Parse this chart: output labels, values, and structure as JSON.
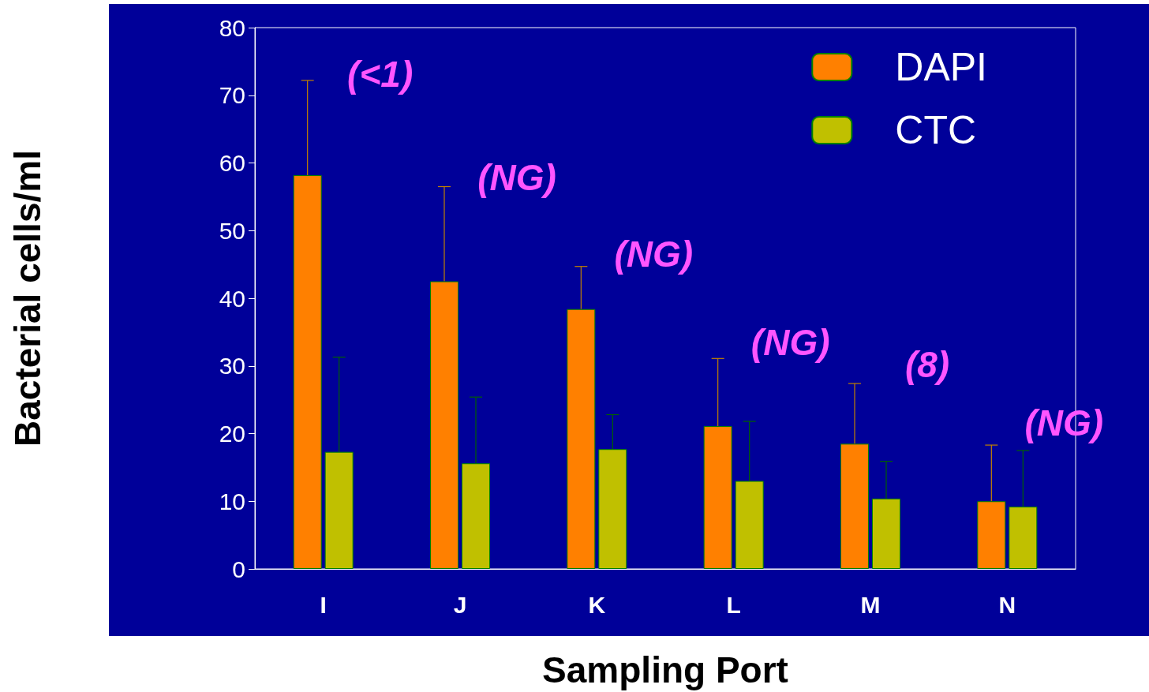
{
  "chart_data": {
    "type": "bar",
    "xlabel": "Sampling Port",
    "ylabel": "Bacterial cells/ml",
    "categories": [
      "I",
      "J",
      "K",
      "L",
      "M",
      "N"
    ],
    "series": [
      {
        "name": "DAPI",
        "color": "#ff8000",
        "values": [
          58.2,
          42.5,
          38.4,
          21.1,
          18.5,
          10.0
        ],
        "errors": [
          [
            58.2,
            72.2
          ],
          [
            42.5,
            56.5
          ],
          [
            38.4,
            44.7
          ],
          [
            21.1,
            31.1
          ],
          [
            18.5,
            27.4
          ],
          [
            10.0,
            18.3
          ]
        ]
      },
      {
        "name": "CTC",
        "color": "#c0c000",
        "values": [
          17.3,
          15.6,
          17.7,
          13.0,
          10.4,
          9.2
        ],
        "errors": [
          [
            17.3,
            31.3
          ],
          [
            15.6,
            25.4
          ],
          [
            17.7,
            22.8
          ],
          [
            13.0,
            21.8
          ],
          [
            10.4,
            15.9
          ],
          [
            9.2,
            17.5
          ]
        ]
      }
    ],
    "ylim": [
      0,
      80
    ],
    "yticks": [
      0,
      10,
      20,
      30,
      40,
      50,
      60,
      70,
      80
    ],
    "grid": false,
    "legend": "top right",
    "annotations": [
      "(<1)",
      "(NG)",
      "(NG)",
      "(NG)",
      "(8)",
      "(NG)"
    ]
  }
}
